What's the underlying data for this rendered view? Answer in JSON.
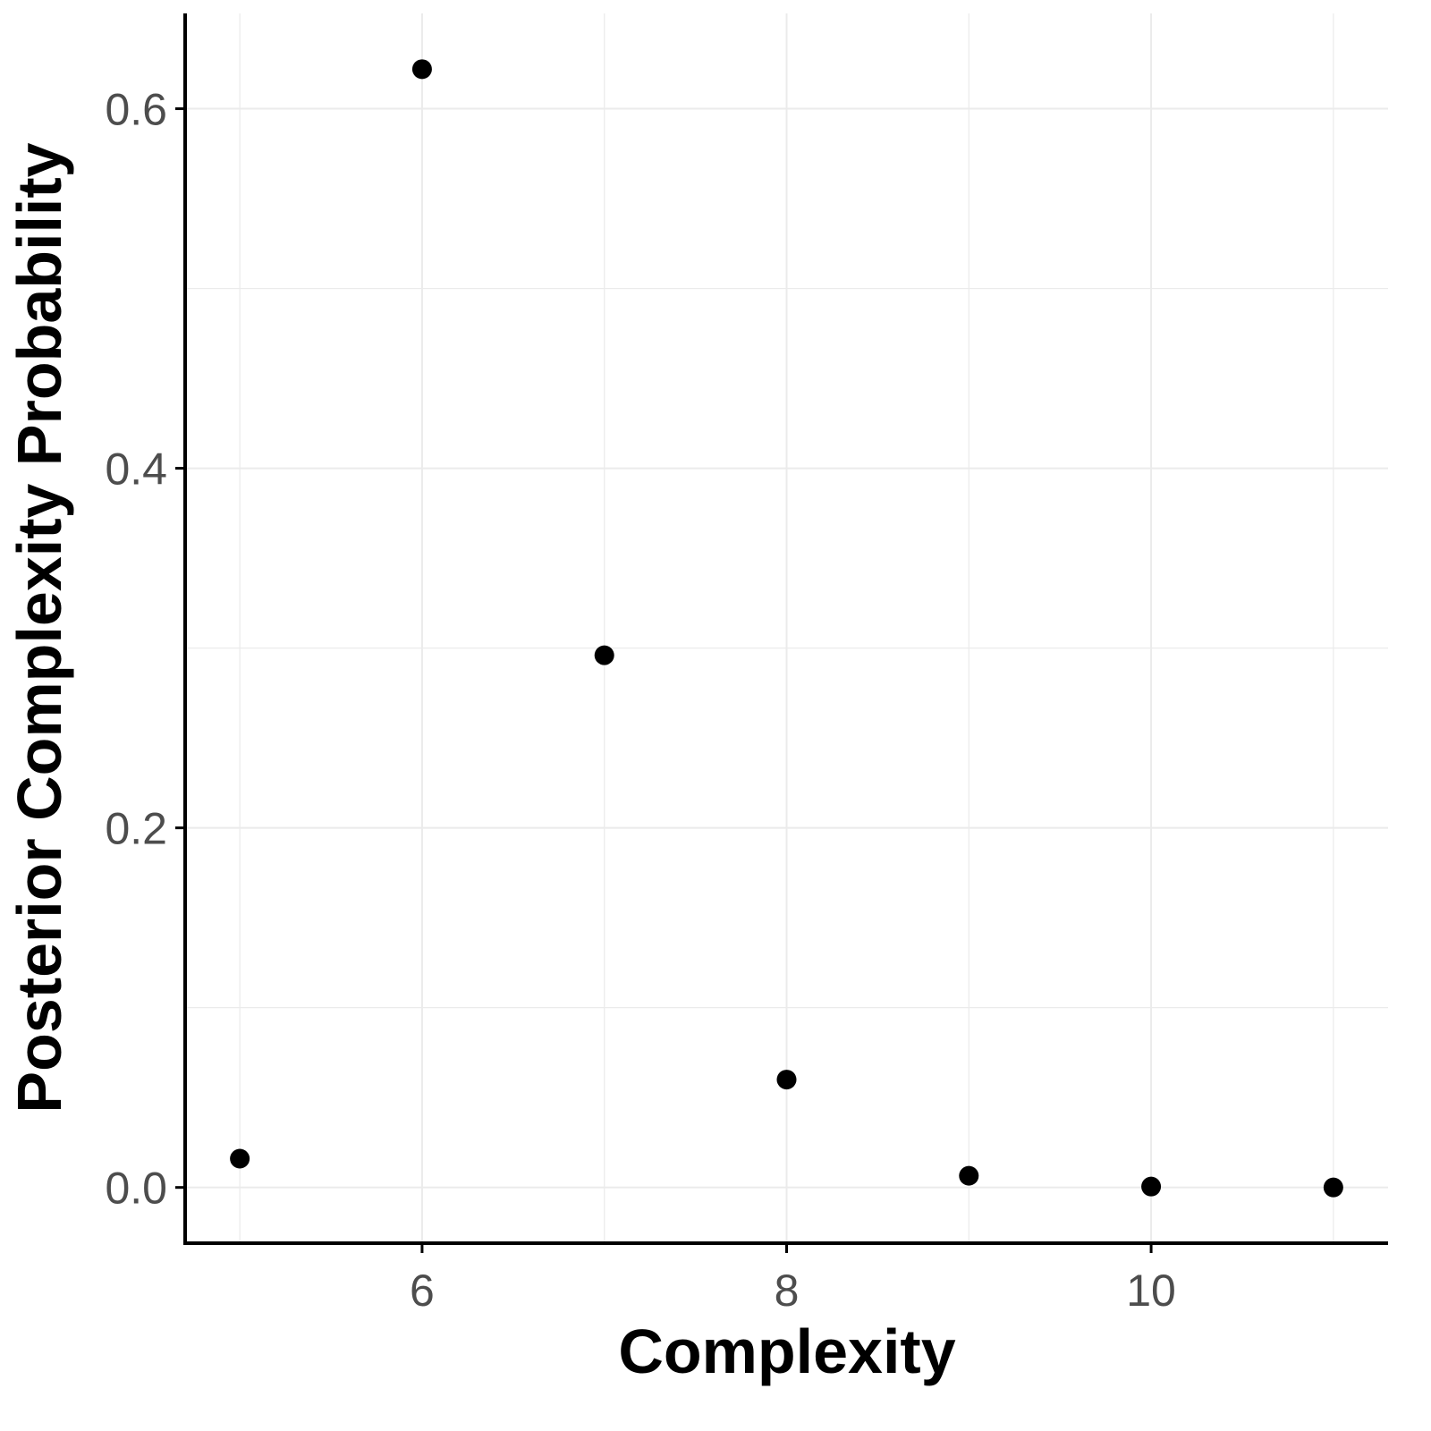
{
  "chart_data": {
    "type": "scatter",
    "title": "",
    "xlabel": "Complexity",
    "ylabel": "Posterior Complexity Probability",
    "x": [
      5,
      6,
      7,
      8,
      9,
      10,
      11
    ],
    "y": [
      0.016,
      0.622,
      0.296,
      0.06,
      0.0065,
      0.0005,
      0.0
    ],
    "xlim": [
      4.7,
      11.3
    ],
    "ylim": [
      -0.031,
      0.653
    ],
    "xticks": [
      6,
      8,
      10
    ],
    "xtick_labels": [
      "6",
      "8",
      "10"
    ],
    "yticks": [
      0.0,
      0.2,
      0.4,
      0.6
    ],
    "ytick_labels": [
      "0.0",
      "0.2",
      "0.4",
      "0.6"
    ],
    "grid": true,
    "point_color": "#000000"
  }
}
